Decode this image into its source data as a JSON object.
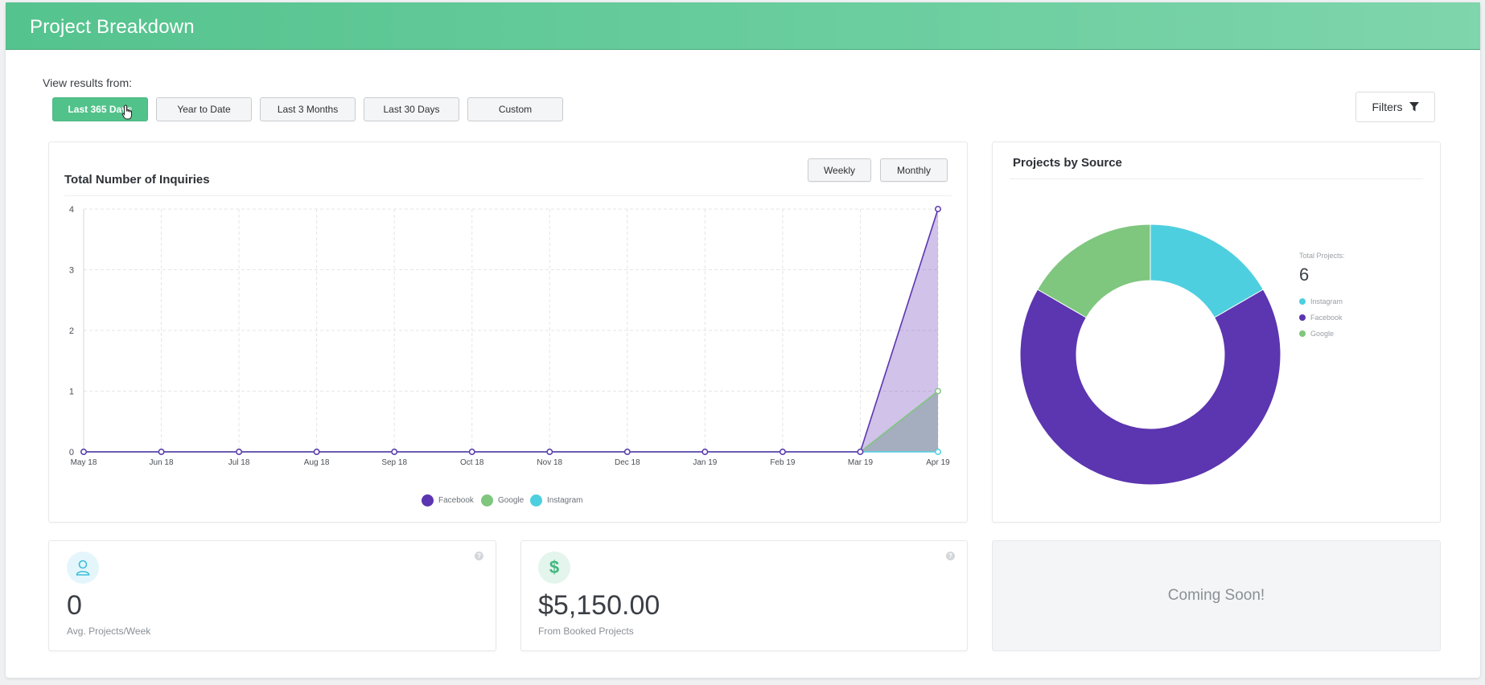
{
  "header": {
    "title": "Project Breakdown"
  },
  "filters": {
    "view_label": "View results from:",
    "ranges": [
      "Last 365 Days",
      "Year to Date",
      "Last 3 Months",
      "Last 30 Days",
      "Custom"
    ],
    "selected": "Last 365 Days",
    "filters_label": "Filters"
  },
  "inquiries_card": {
    "title": "Total Number of Inquiries",
    "toggle": [
      "Weekly",
      "Monthly"
    ]
  },
  "source_card": {
    "title": "Projects by Source",
    "total_label": "Total Projects:",
    "total_value": "6"
  },
  "stats": {
    "avg_value": "0",
    "avg_label": "Avg. Projects/Week",
    "booked_value": "$5,150.00",
    "booked_label": "From Booked Projects",
    "coming_soon": "Coming Soon!"
  },
  "colors": {
    "facebook": "#5c35b0",
    "google": "#7fc67f",
    "instagram": "#4ecfe0",
    "accent": "#52c28b"
  },
  "chart_data": [
    {
      "type": "area",
      "title": "Total Number of Inquiries",
      "categories": [
        "May 18",
        "Jun 18",
        "Jul 18",
        "Aug 18",
        "Sep 18",
        "Oct 18",
        "Nov 18",
        "Dec 18",
        "Jan 19",
        "Feb 19",
        "Mar 19",
        "Apr 19"
      ],
      "yticks": [
        "0",
        "1",
        "2",
        "3",
        "4"
      ],
      "ylim": [
        0,
        4
      ],
      "series": [
        {
          "name": "Facebook",
          "color": "#5c35b0",
          "values": [
            0,
            0,
            0,
            0,
            0,
            0,
            0,
            0,
            0,
            0,
            0,
            4
          ]
        },
        {
          "name": "Google",
          "color": "#7fc67f",
          "values": [
            0,
            0,
            0,
            0,
            0,
            0,
            0,
            0,
            0,
            0,
            0,
            1
          ]
        },
        {
          "name": "Instagram",
          "color": "#4ecfe0",
          "values": [
            0,
            0,
            0,
            0,
            0,
            0,
            0,
            0,
            0,
            0,
            0,
            0
          ]
        }
      ],
      "legend": "bottom"
    },
    {
      "type": "pie",
      "title": "Projects by Source",
      "categories": [
        "Instagram",
        "Facebook",
        "Google"
      ],
      "values": [
        1,
        4,
        1
      ],
      "colors": [
        "#4ecfe0",
        "#5c35b0",
        "#7fc67f"
      ]
    }
  ]
}
